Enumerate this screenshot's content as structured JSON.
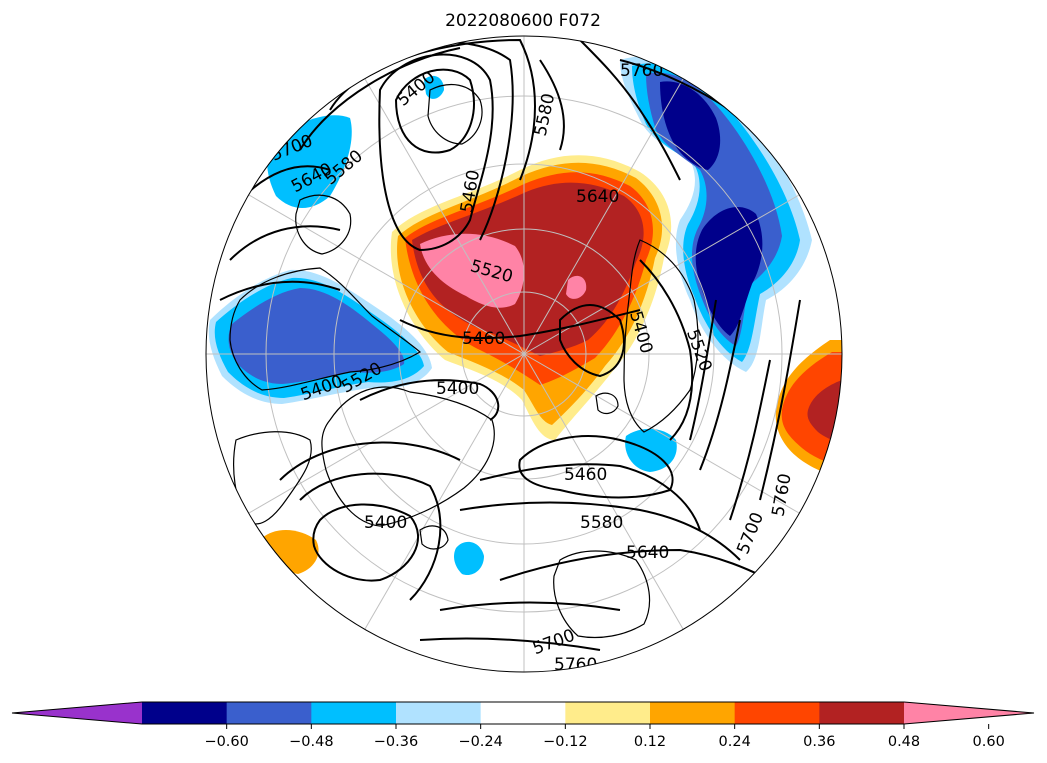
{
  "title": "2022080600 F072",
  "map": {
    "projection": "north-polar-stereographic",
    "ocean_color": "#ffffff",
    "coastline_color": "#000000",
    "grid_color": "#c0c0c0",
    "contour_color": "#000000"
  },
  "contour_labels": [
    "5400",
    "5580",
    "5760",
    "5700",
    "5640",
    "5580",
    "5460",
    "5640",
    "5520",
    "5460",
    "5400",
    "5400",
    "5460",
    "5580",
    "5640",
    "5400",
    "5700",
    "5760",
    "5700",
    "5760",
    "5520",
    "5400",
    "5520"
  ],
  "colorbar": {
    "extend": "both",
    "colors": [
      "#9932cc",
      "#00008b",
      "#3a5fcd",
      "#00bfff",
      "#b0e2ff",
      "#ffffff",
      "#ffec8b",
      "#ffa500",
      "#ff4500",
      "#b22222",
      "#ff83a6"
    ],
    "ticks": [
      "−0.60",
      "−0.48",
      "−0.36",
      "−0.24",
      "−0.12",
      "0.12",
      "0.24",
      "0.36",
      "0.48",
      "0.60"
    ]
  }
}
